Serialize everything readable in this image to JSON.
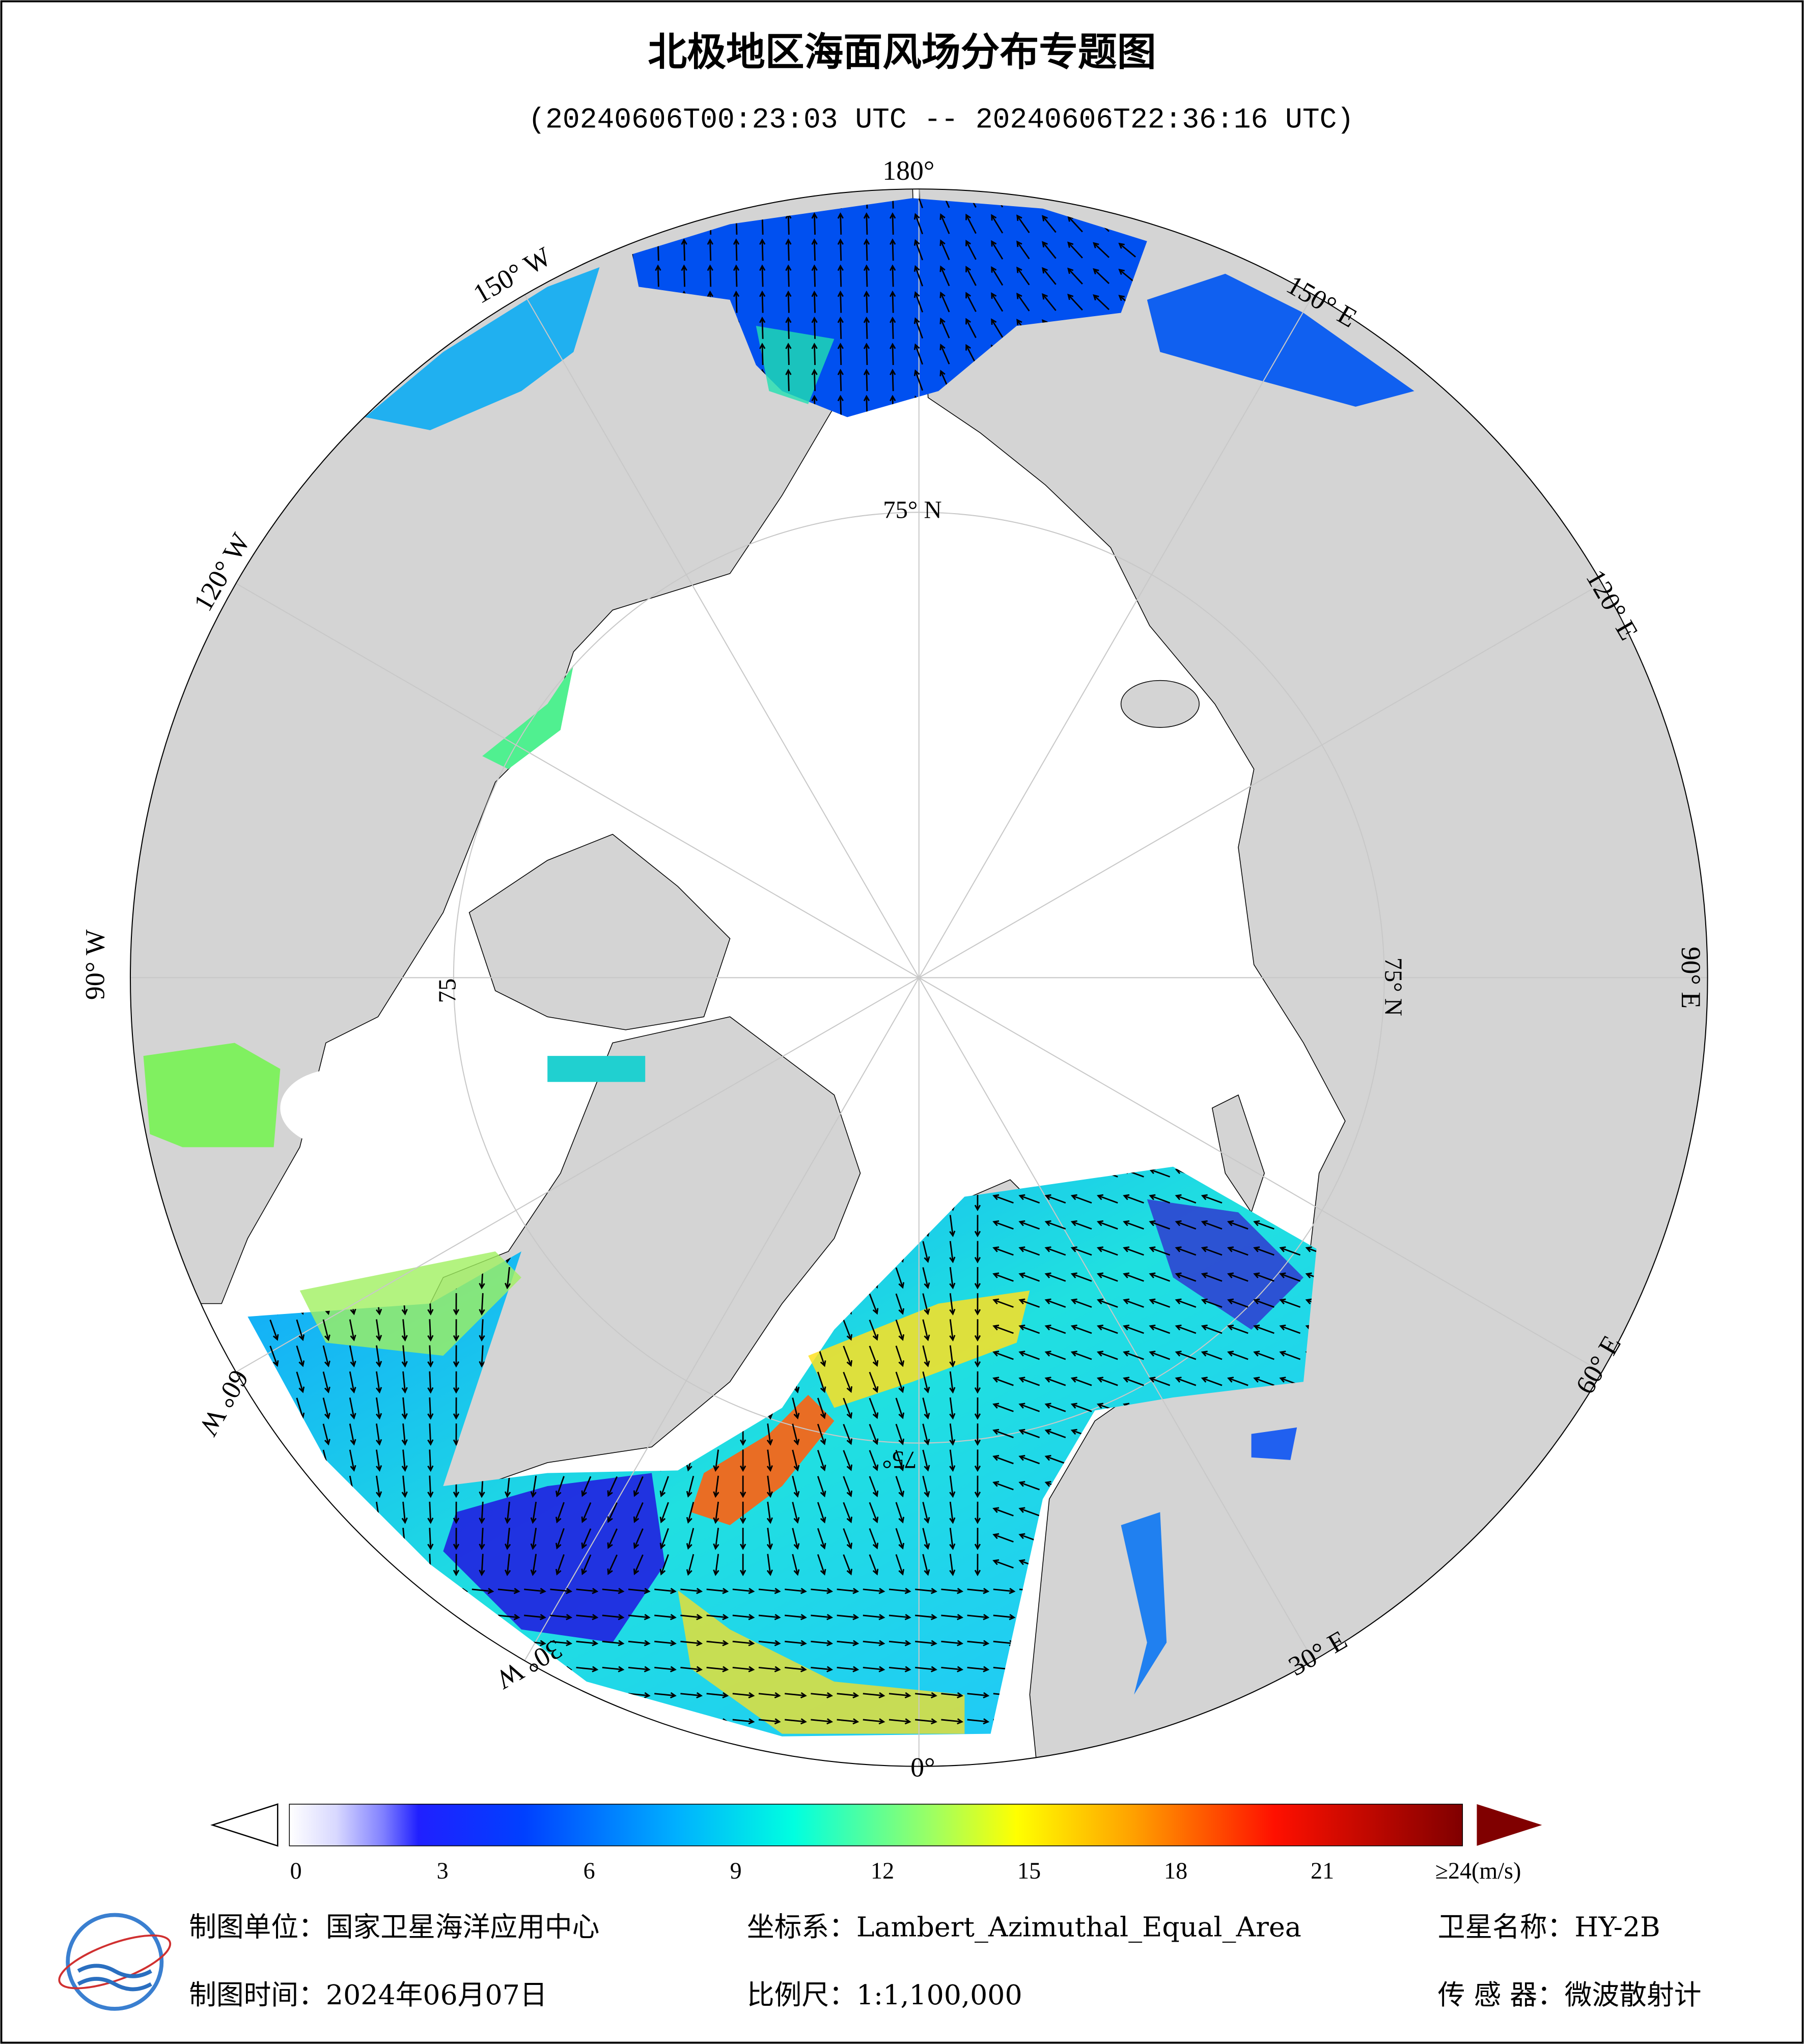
{
  "title": "北极地区海面风场分布专题图",
  "subtitle": "(20240606T00:23:03 UTC -- 20240606T22:36:16 UTC)",
  "longitude_labels": [
    "180°",
    "150° W",
    "120° W",
    "90° W",
    "60° W",
    "30° W",
    "0°",
    "30° E",
    "60° E",
    "90° E",
    "120° E",
    "150° E"
  ],
  "latitude_labels": [
    "75° N",
    "75° N",
    "75",
    "75°"
  ],
  "colorbar": {
    "lim": [
      0,
      24
    ],
    "ticks": [
      0,
      3,
      6,
      9,
      12,
      15,
      18,
      21,
      {
        "value": 24,
        "label": "≥24(m/s)"
      }
    ]
  },
  "footer": {
    "producer": "制图单位：国家卫星海洋应用中心",
    "projection": "坐标系：Lambert_Azimuthal_Equal_Area",
    "satellite": "卫星名称：HY-2B",
    "date": "制图时间：2024年06月07日",
    "scale": "比例尺：1:1,100,000",
    "sensor": "传 感 器：微波散射计"
  }
}
